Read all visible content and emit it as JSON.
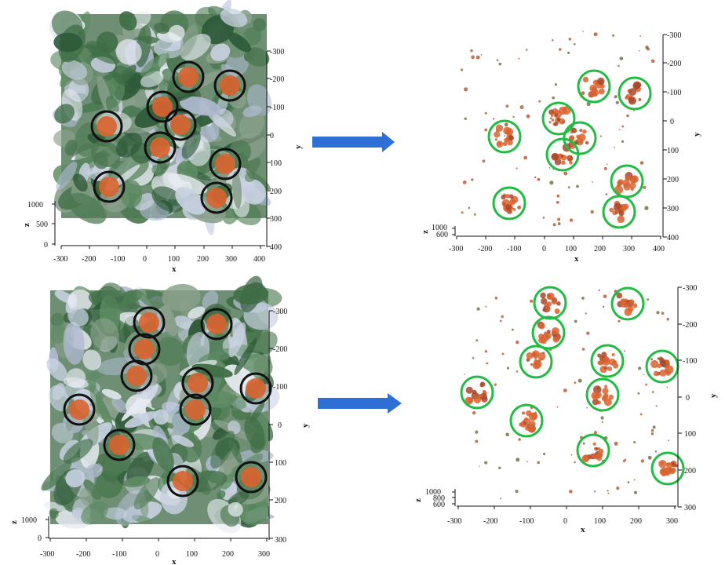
{
  "colors": {
    "circle_left": "#111111",
    "circle_right": "#22bb44",
    "arrow": "#2e6fd6",
    "leaf_dark": "#3f6e45",
    "leaf_light": "#aeb9cf",
    "fruit": "#d9632f",
    "background": "#ffffff"
  },
  "panels": [
    {
      "id": "top-left",
      "kind": "point-cloud",
      "x_ticks": [
        "-300",
        "-200",
        "-100",
        "0",
        "100",
        "200",
        "300",
        "400"
      ],
      "y_ticks": [
        "-300",
        "-200",
        "-100",
        "0",
        "100",
        "200",
        "300",
        "400"
      ],
      "z_ticks": [
        "1000",
        "500",
        "0"
      ],
      "x_label": "x",
      "y_label": "y",
      "z_label": "z",
      "circle_count": 10
    },
    {
      "id": "top-right",
      "kind": "segmented",
      "x_ticks": [
        "-300",
        "-200",
        "-100",
        "0",
        "100",
        "200",
        "300",
        "400"
      ],
      "y_ticks": [
        "-300",
        "-200",
        "-100",
        "0",
        "100",
        "200",
        "300",
        "400"
      ],
      "z_ticks": [
        "1000",
        "600"
      ],
      "x_label": "x",
      "y_label": "y",
      "z_label": "z",
      "circle_count": 10
    },
    {
      "id": "bottom-left",
      "kind": "point-cloud",
      "x_ticks": [
        "-300",
        "-200",
        "-100",
        "0",
        "100",
        "200",
        "300"
      ],
      "y_ticks": [
        "-300",
        "-200",
        "-100",
        "0",
        "100",
        "200",
        "300"
      ],
      "z_ticks": [
        "1000",
        "0"
      ],
      "x_label": "x",
      "y_label": "y",
      "z_label": "z",
      "circle_count": 11
    },
    {
      "id": "bottom-right",
      "kind": "segmented",
      "x_ticks": [
        "-300",
        "-200",
        "-100",
        "0",
        "100",
        "200",
        "300"
      ],
      "y_ticks": [
        "-300",
        "-200",
        "-100",
        "0",
        "100",
        "200",
        "300"
      ],
      "z_ticks": [
        "1000",
        "800",
        "600"
      ],
      "x_label": "x",
      "y_label": "y",
      "z_label": "z",
      "circle_count": 11
    }
  ]
}
